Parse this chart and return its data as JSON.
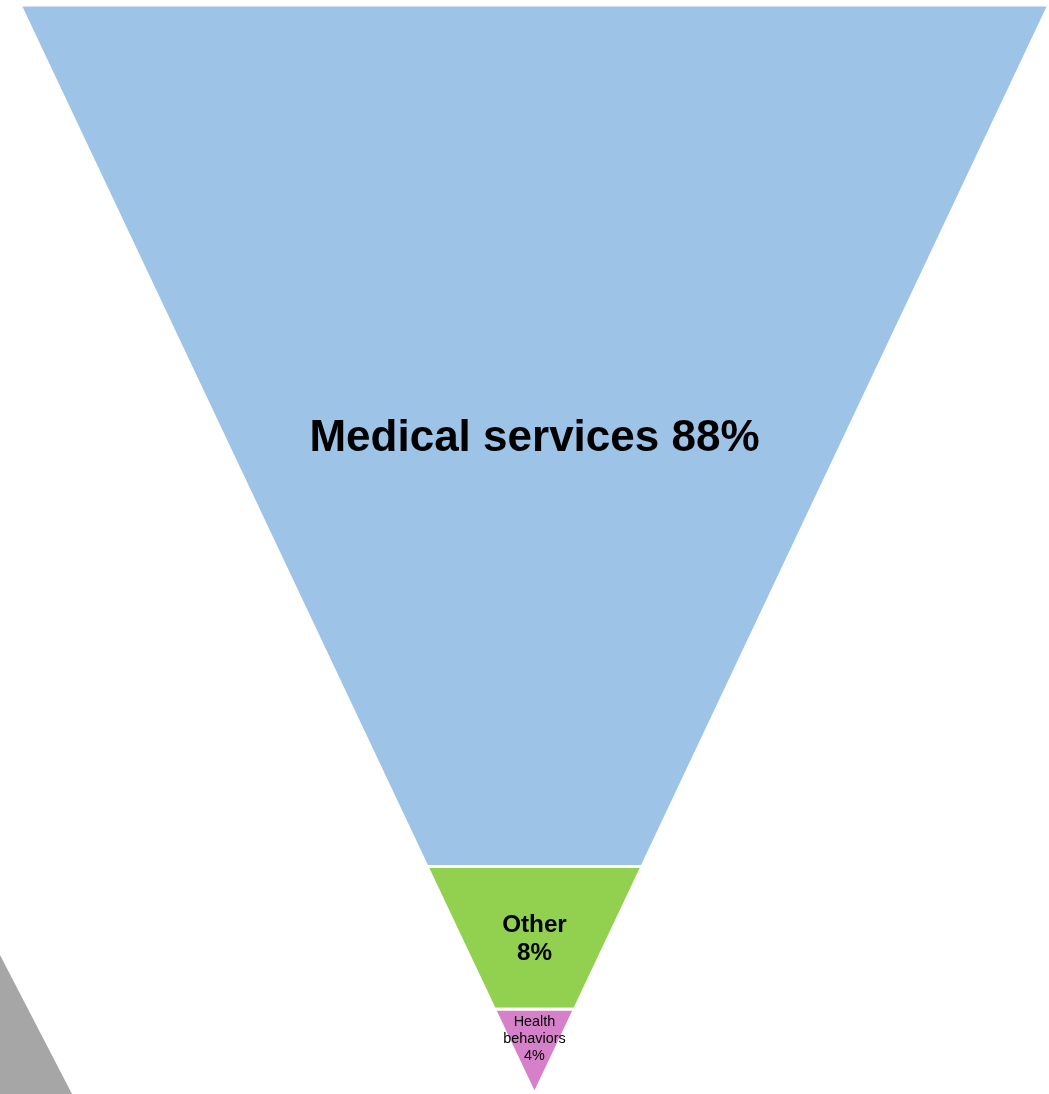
{
  "chart_data": {
    "type": "other",
    "categories": [
      "Medical services",
      "Other",
      "Health behaviors"
    ],
    "values": [
      88,
      8,
      4
    ],
    "value_labels": [
      "88%",
      "8%",
      "4%"
    ],
    "colors": [
      "#9dc3e6",
      "#92d050",
      "#d580c8"
    ]
  }
}
